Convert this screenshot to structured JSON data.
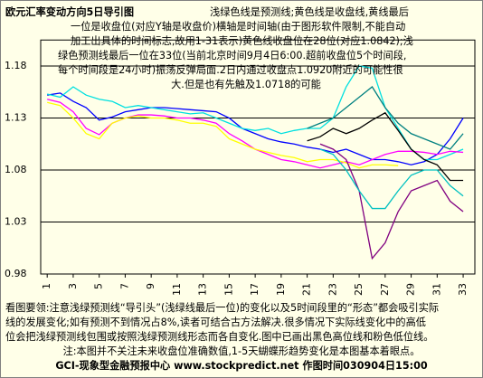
{
  "chart_data": {
    "type": "line",
    "title": "欧元汇率变动方向5日导引图",
    "description": [
      "浅绿色线是预测线;黄色线是收盘线,黄线最后",
      "一位是收盘位(对应Y轴是收盘价)横轴是时间轴(由于图形软件限制,不能自动",
      "加工出具体的时间标志,故用1-31表示)黄色线收盘位在28位(对应1.0842);浅",
      "绿色预测线最后一位在33位(当前北京时间9月4日6:00.超前收盘位5个时间段,",
      "每个时间段是24小时)振荡反弹局面.2日内通过收盘点1.0920附近的可能性很",
      "大.但是也有先触及1.0718的可能"
    ],
    "notes": [
      "看图要领:注意浅绿预测线“导引头”(浅绿线最后一位)的变化以及5时间段里的“形态”都会吸引实际",
      "线的发展变化;如有预测不到情况占8%,读者可结合古方法解决.很多情况下实际线变化中的高低",
      "位会把浅绿预测线包围或按照浅绿预测线形态而各自变化.图中已画出黑色高位线和粉色低位线。",
      "注:本图并不关注未来收盘位准确数值,1-5天蝴蝶形趋势变化是本图基本着眼点。"
    ],
    "footer": "GCI-现象型金融预报中心  www.stockpredict.net  作图时间030904日15:00",
    "x": [
      1,
      2,
      3,
      4,
      5,
      6,
      7,
      8,
      9,
      10,
      11,
      12,
      13,
      14,
      15,
      16,
      17,
      18,
      19,
      20,
      21,
      22,
      23,
      24,
      25,
      26,
      27,
      28,
      29,
      30,
      31,
      32,
      33
    ],
    "xlim": [
      0.5,
      33.9
    ],
    "xticks": [
      1,
      3,
      5,
      7,
      9,
      11,
      13,
      15,
      17,
      19,
      21,
      23,
      25,
      27,
      29,
      31,
      33
    ],
    "ylim": [
      0.98,
      1.205
    ],
    "yticks": [
      0.98,
      1.03,
      1.08,
      1.13,
      1.18
    ],
    "grid": true,
    "series": [
      {
        "color": "#0000ff",
        "values": [
          1.152,
          1.154,
          1.146,
          1.14,
          1.128,
          1.131,
          1.136,
          1.138,
          1.14,
          1.14,
          1.139,
          1.138,
          1.137,
          1.136,
          1.13,
          1.12,
          1.115,
          1.11,
          1.107,
          1.105,
          1.102,
          1.1,
          1.097,
          1.1,
          1.095,
          1.09,
          1.09,
          1.088,
          1.085,
          1.088,
          1.095,
          1.11,
          1.13
        ]
      },
      {
        "color": "#00e0e0",
        "values": [
          1.153,
          1.15,
          1.16,
          1.152,
          1.148,
          1.146,
          1.14,
          1.142,
          1.14,
          1.138,
          1.136,
          1.134,
          1.135,
          1.13,
          1.125,
          1.12,
          1.118,
          1.12,
          1.115,
          1.118,
          1.12,
          1.12,
          1.13,
          1.16,
          1.18,
          1.178,
          1.14,
          1.12,
          1.1,
          1.09,
          1.09,
          1.095,
          1.1
        ]
      },
      {
        "color": "#ff00ff",
        "values": [
          1.148,
          1.145,
          1.136,
          1.12,
          1.114,
          1.125,
          1.13,
          1.133,
          1.133,
          1.132,
          1.13,
          1.13,
          1.128,
          1.125,
          1.115,
          1.108,
          1.1,
          1.095,
          1.09,
          1.088,
          1.085,
          1.082,
          1.085,
          1.088,
          1.085,
          1.09,
          1.095,
          1.098,
          1.098,
          1.097,
          1.095,
          1.098,
          1.097
        ]
      },
      {
        "color": "#ffff00",
        "values": [
          1.145,
          1.142,
          1.13,
          1.115,
          1.11,
          1.125,
          1.13,
          1.132,
          1.13,
          1.13,
          1.128,
          1.125,
          1.125,
          1.122,
          1.11,
          1.105,
          1.1,
          1.097,
          1.094,
          1.092,
          1.088,
          1.09,
          1.09,
          1.087,
          1.082,
          1.085,
          1.085,
          1.0842,
          null,
          null,
          null,
          null,
          null
        ]
      },
      {
        "color": "#000000",
        "values": [
          null,
          null,
          null,
          null,
          null,
          null,
          null,
          null,
          null,
          null,
          null,
          null,
          null,
          null,
          null,
          null,
          null,
          null,
          null,
          null,
          1.108,
          1.112,
          1.12,
          1.115,
          1.12,
          1.128,
          1.135,
          1.118,
          1.1,
          1.09,
          1.085,
          1.07,
          1.07
        ]
      },
      {
        "color": "#008080",
        "values": [
          null,
          null,
          null,
          null,
          null,
          null,
          null,
          null,
          null,
          null,
          null,
          null,
          null,
          null,
          null,
          null,
          null,
          null,
          null,
          null,
          1.12,
          1.125,
          1.13,
          1.14,
          1.15,
          1.16,
          1.14,
          1.125,
          1.115,
          1.11,
          1.105,
          1.1,
          1.115
        ]
      },
      {
        "color": "#800080",
        "values": [
          null,
          null,
          null,
          null,
          null,
          null,
          null,
          null,
          null,
          null,
          null,
          null,
          null,
          null,
          null,
          null,
          null,
          null,
          null,
          null,
          null,
          1.105,
          1.1,
          1.09,
          1.06,
          0.995,
          1.01,
          1.04,
          1.06,
          1.065,
          1.07,
          1.05,
          1.04
        ]
      },
      {
        "color": "#00c0c0",
        "values": [
          null,
          null,
          null,
          null,
          null,
          null,
          null,
          null,
          null,
          null,
          null,
          null,
          null,
          null,
          null,
          null,
          null,
          null,
          null,
          null,
          null,
          1.1,
          1.095,
          1.08,
          1.06,
          1.043,
          1.043,
          1.06,
          1.075,
          1.08,
          1.08,
          1.065,
          1.055
        ]
      }
    ]
  }
}
